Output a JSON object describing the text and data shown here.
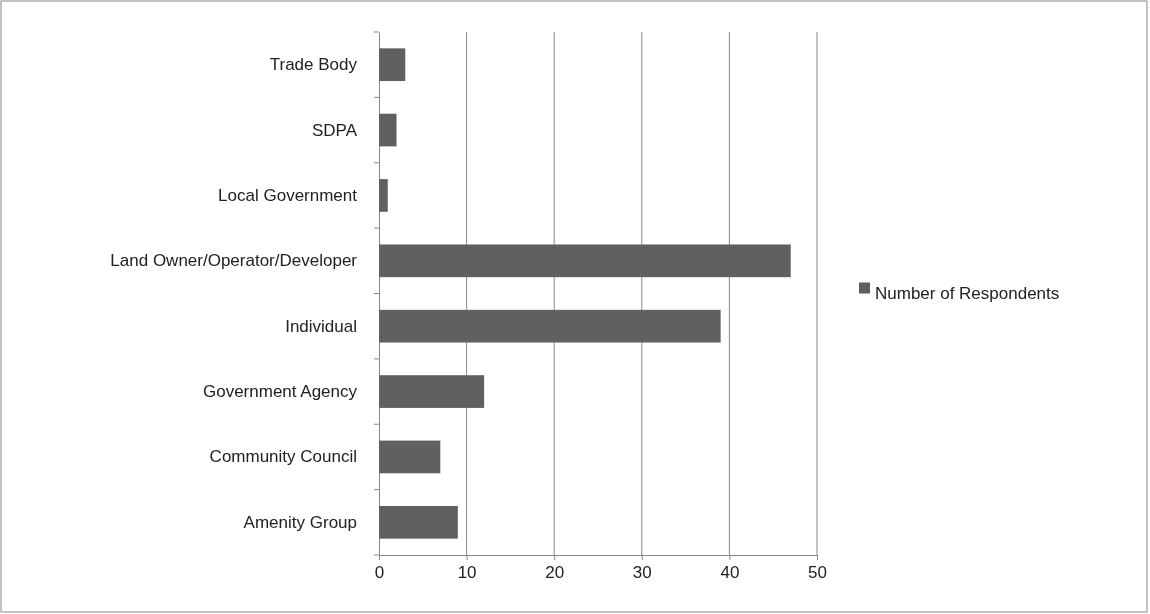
{
  "chart_data": {
    "type": "bar",
    "orientation": "horizontal",
    "categories": [
      "Trade Body",
      "SDPA",
      "Local Government",
      "Land Owner/Operator/Developer",
      "Individual",
      "Government Agency",
      "Community Council",
      "Amenity Group"
    ],
    "series": [
      {
        "name": "Number of Respondents",
        "color": "#606060",
        "values": [
          3,
          2,
          1,
          47,
          39,
          12,
          7,
          9
        ]
      }
    ],
    "xlim": [
      0,
      50
    ],
    "xticks": [
      0,
      10,
      20,
      30,
      40,
      50
    ],
    "grid": "x",
    "legend": "right"
  }
}
